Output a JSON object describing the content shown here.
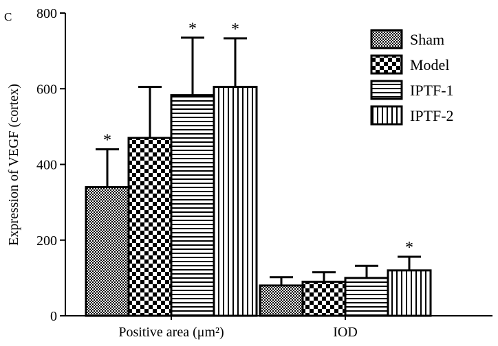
{
  "panel_label": "C",
  "chart_data": {
    "type": "bar",
    "title": "",
    "ylabel": "Expression of VEGF (cortex)",
    "xlabel": "",
    "categories": [
      "Positive area (μm²)",
      "IOD"
    ],
    "ylim": [
      0,
      800
    ],
    "yticks": [
      0,
      200,
      400,
      600,
      800
    ],
    "grid": false,
    "legend_position": "top-right",
    "series": [
      {
        "name": "Sham",
        "pattern": "checker-fine",
        "values": [
          340,
          80
        ],
        "errors": [
          100,
          22
        ],
        "significant": [
          true,
          false
        ]
      },
      {
        "name": "Model",
        "pattern": "checker-coarse",
        "values": [
          470,
          90
        ],
        "errors": [
          135,
          25
        ],
        "significant": [
          false,
          false
        ]
      },
      {
        "name": "IPTF-1",
        "pattern": "horizontal-lines",
        "values": [
          583,
          100
        ],
        "errors": [
          152,
          32
        ],
        "significant": [
          true,
          false
        ]
      },
      {
        "name": "IPTF-2",
        "pattern": "vertical-lines",
        "values": [
          605,
          120
        ],
        "errors": [
          128,
          36
        ],
        "significant": [
          true,
          true
        ]
      }
    ],
    "significance_marker": "*"
  }
}
